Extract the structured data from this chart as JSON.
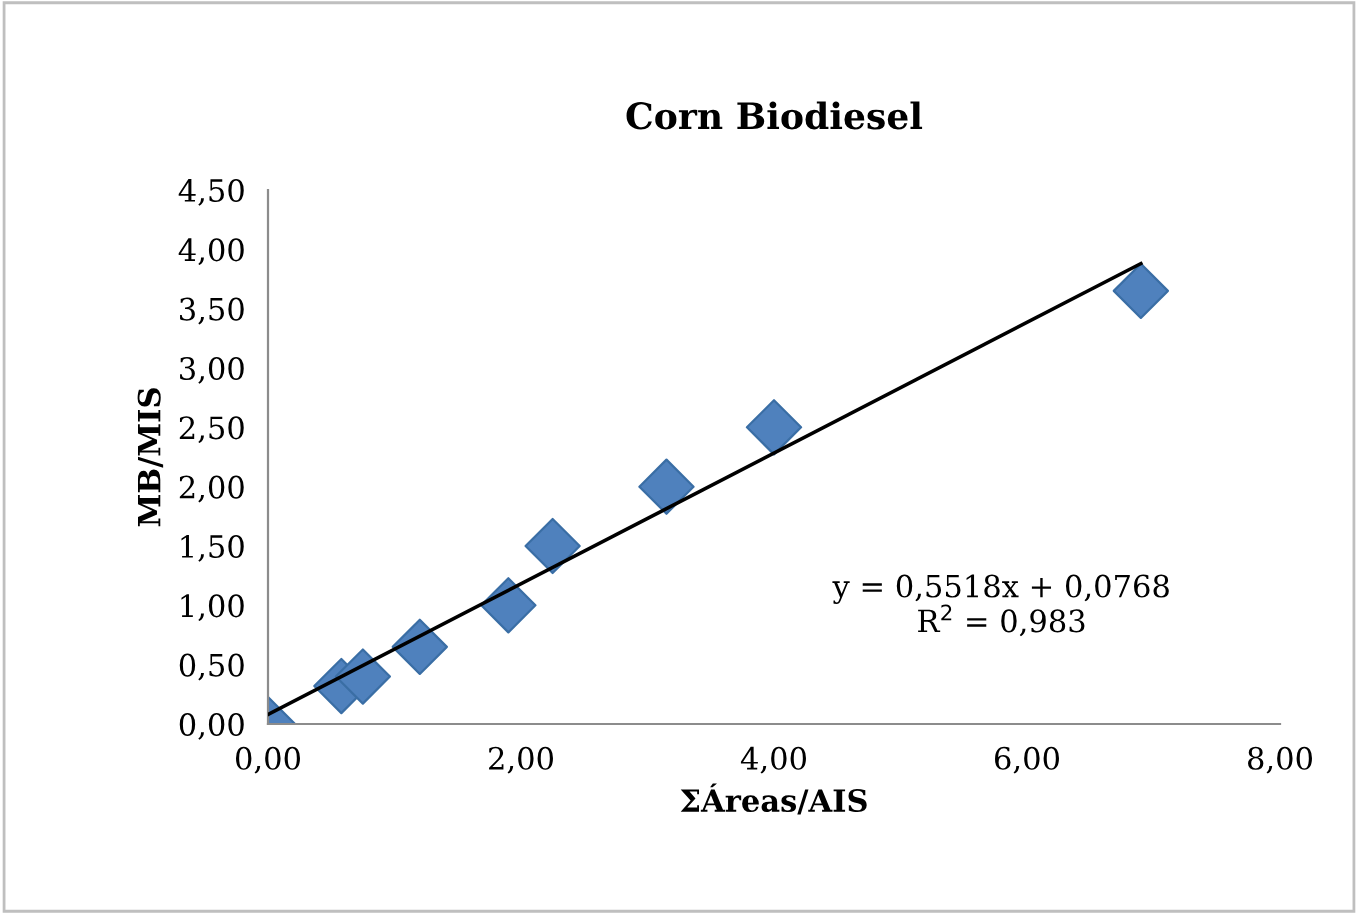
{
  "chart_data": {
    "type": "scatter",
    "title": "Corn Biodiesel",
    "xlabel": "ΣÁreas/AIS",
    "ylabel": "MB/MIS",
    "x": [
      0,
      0.58,
      0.75,
      1.2,
      1.9,
      2.25,
      3.15,
      4.0,
      6.9
    ],
    "series": [
      {
        "color": "#4f81bd",
        "marker": "diamond",
        "values": [
          0,
          0.32,
          0.4,
          0.65,
          1.0,
          1.5,
          2.0,
          2.5,
          3.65
        ]
      },
      {
        "type": "line",
        "color": "#000000",
        "marker": "none",
        "line_style": "solid",
        "x": [
          0,
          6.9
        ],
        "values": [
          0.08,
          3.88
        ]
      }
    ],
    "xlim": [
      0,
      8
    ],
    "ylim": [
      0,
      4.5
    ],
    "xticks": [
      {
        "value": 0,
        "label": "0,00"
      },
      {
        "value": 2,
        "label": "2,00"
      },
      {
        "value": 4,
        "label": "4,00"
      },
      {
        "value": 6,
        "label": "6,00"
      },
      {
        "value": 8,
        "label": "8,00"
      }
    ],
    "yticks": [
      {
        "value": 0,
        "label": "0,00"
      },
      {
        "value": 0.5,
        "label": "0,50"
      },
      {
        "value": 1,
        "label": "1,00"
      },
      {
        "value": 1.5,
        "label": "1,50"
      },
      {
        "value": 2,
        "label": "2,00"
      },
      {
        "value": 2.5,
        "label": "2,50"
      },
      {
        "value": 3,
        "label": "3,00"
      },
      {
        "value": 3.5,
        "label": "3,50"
      },
      {
        "value": 4,
        "label": "4,00"
      },
      {
        "value": 4.5,
        "label": "4,50"
      }
    ],
    "annotations": [
      "y = 0,5518x + 0,0768\nR$^{2}$ = 0,983"
    ],
    "grid": false,
    "legend": false
  }
}
